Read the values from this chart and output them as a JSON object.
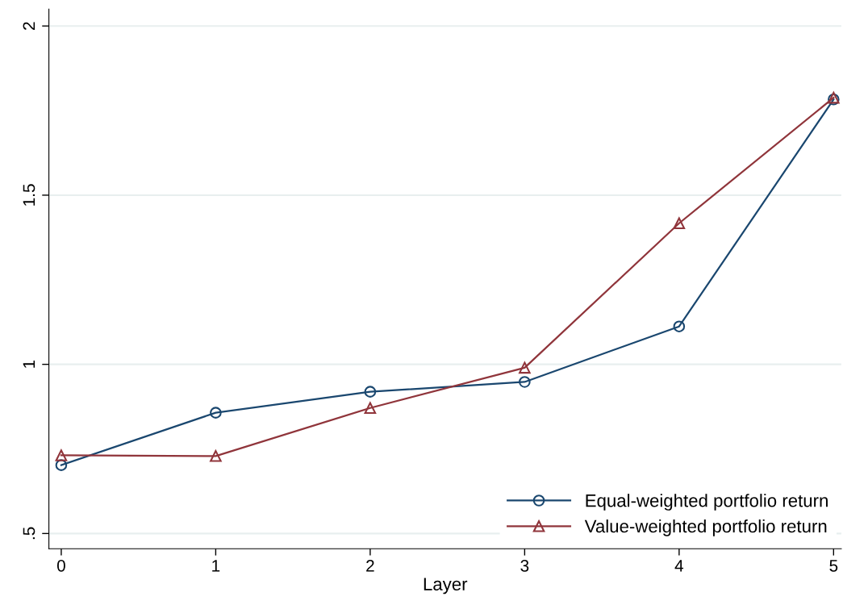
{
  "chart_data": {
    "type": "line",
    "xlabel": "Layer",
    "x": [
      0,
      1,
      2,
      3,
      4,
      5
    ],
    "series": [
      {
        "name": "Equal-weighted portfolio return",
        "color": "#1a476f",
        "marker": "circle",
        "values": [
          0.702,
          0.857,
          0.919,
          0.948,
          1.112,
          1.783
        ]
      },
      {
        "name": "Value-weighted portfolio return",
        "color": "#90353b",
        "marker": "triangle",
        "values": [
          0.731,
          0.729,
          0.871,
          0.99,
          1.417,
          1.788
        ]
      }
    ],
    "xlim": [
      -0.08,
      5.05
    ],
    "xticks": [
      0,
      1,
      2,
      3,
      4,
      5
    ],
    "ylim": [
      0.455,
      2.05
    ],
    "yticks": [
      {
        "value": 0.5,
        "label": ".5"
      },
      1,
      1.5,
      2
    ],
    "grid": "y",
    "legend": "bottom right",
    "line_style": "solid"
  }
}
